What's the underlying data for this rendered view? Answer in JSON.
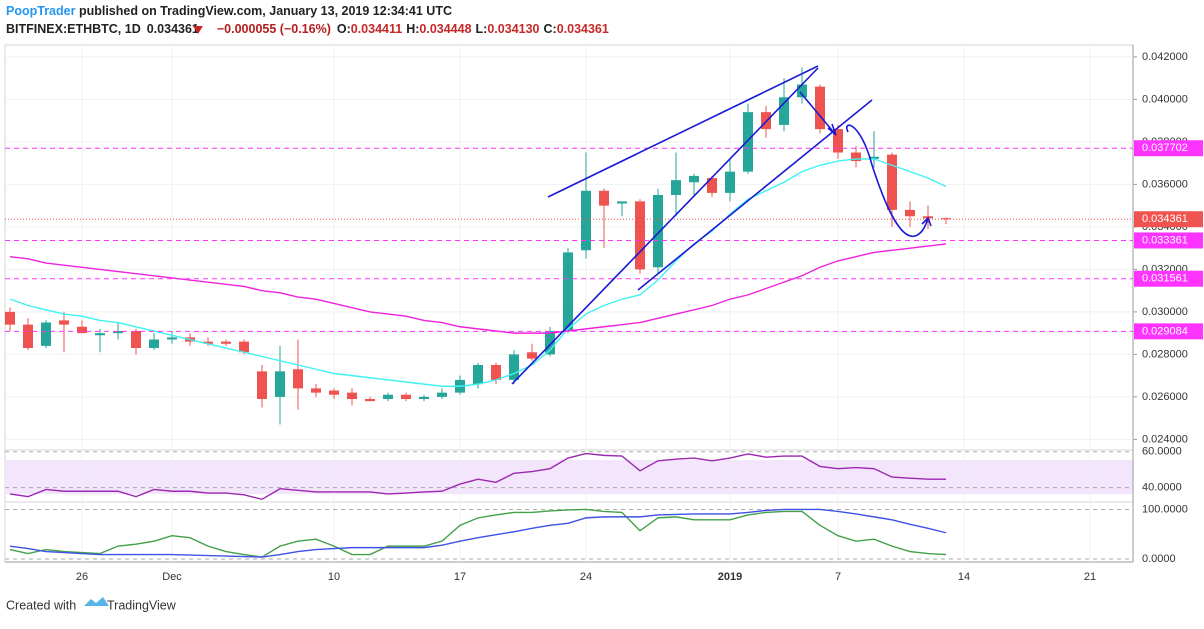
{
  "header": {
    "author": "PoopTrader",
    "published": " published on TradingView.com, January 13, 2019 12:34:41 UTC",
    "symbol": "BITFINEX:ETHBTC, 1D",
    "price": "0.034361",
    "change": "−0.000055 (−0.16%)",
    "ohlc": [
      {
        "label": "O:",
        "value": "0.034411"
      },
      {
        "label": "H:",
        "value": "0.034448"
      },
      {
        "label": "L:",
        "value": "0.034130"
      },
      {
        "label": "C:",
        "value": "0.034361"
      }
    ]
  },
  "footer": {
    "created": "Created with",
    "brand": "TradingView"
  },
  "chart_data": [
    {
      "type": "candlestick",
      "up_color": "#26a69a",
      "down_color": "#ef5350",
      "categories": [
        null,
        null,
        null,
        null,
        "26",
        null,
        null,
        null,
        null,
        "Dec",
        null,
        null,
        null,
        null,
        null,
        null,
        null,
        null,
        "10",
        null,
        null,
        null,
        null,
        null,
        null,
        "17",
        null,
        null,
        null,
        null,
        null,
        null,
        "24",
        null,
        null,
        null,
        null,
        null,
        null,
        null,
        "2019",
        null,
        null,
        null,
        null,
        null,
        "7",
        null,
        null,
        null,
        null,
        null,
        null,
        "14",
        null,
        null,
        null,
        null,
        null,
        null,
        "21",
        null,
        null
      ],
      "open": [
        0.03,
        0.0294,
        0.0284,
        0.0296,
        0.0293,
        0.0289,
        0.029,
        0.0291,
        0.0283,
        0.0287,
        0.0288,
        0.0286,
        0.0286,
        0.0286,
        0.0272,
        0.026,
        0.0273,
        0.0264,
        0.0263,
        0.0262,
        0.0259,
        0.0259,
        0.0261,
        0.0259,
        0.026,
        0.0262,
        0.0266,
        0.0275,
        0.0268,
        0.0281,
        0.028,
        0.0291,
        0.0329,
        0.0357,
        0.0351,
        0.0352,
        0.0321,
        0.0355,
        0.0361,
        0.0363,
        0.0356,
        0.0366,
        0.0394,
        0.0388,
        0.0401,
        0.0406,
        0.0386,
        0.0375,
        0.0372,
        0.0374,
        0.0348,
        0.0345,
        0.034411,
        null,
        null,
        null,
        null,
        null,
        null,
        null,
        null,
        null,
        null
      ],
      "high": [
        0.0302,
        0.0297,
        0.0296,
        0.03,
        0.0296,
        0.0292,
        0.0295,
        0.0292,
        0.029,
        0.0291,
        0.029,
        0.0288,
        0.0287,
        0.0287,
        0.0275,
        0.0284,
        0.0287,
        0.0266,
        0.0264,
        0.0264,
        0.026,
        0.0262,
        0.0262,
        0.0261,
        0.0264,
        0.027,
        0.0276,
        0.0276,
        0.0282,
        0.0285,
        0.0293,
        0.033,
        0.0375,
        0.0358,
        0.0352,
        0.0353,
        0.0358,
        0.0375,
        0.0365,
        0.0364,
        0.0372,
        0.0398,
        0.0397,
        0.041,
        0.0415,
        0.0407,
        0.0388,
        0.0378,
        0.0385,
        0.0375,
        0.0352,
        0.035,
        0.034448,
        null,
        null,
        null,
        null,
        null,
        null,
        null,
        null,
        null,
        null
      ],
      "low": [
        0.0291,
        0.0282,
        0.0283,
        0.0281,
        0.029,
        0.0281,
        0.0287,
        0.028,
        0.0282,
        0.0285,
        0.0284,
        0.0284,
        0.0284,
        0.028,
        0.0255,
        0.0247,
        0.0254,
        0.026,
        0.0259,
        0.0256,
        0.0258,
        0.0258,
        0.0258,
        0.0258,
        0.0259,
        0.0261,
        0.0264,
        0.0266,
        0.0266,
        0.0277,
        0.0279,
        0.029,
        0.0325,
        0.033,
        0.0345,
        0.0318,
        0.0318,
        0.0345,
        0.0355,
        0.0354,
        0.0352,
        0.0365,
        0.0382,
        0.0385,
        0.0398,
        0.0384,
        0.0372,
        0.0368,
        0.0368,
        0.034,
        0.034,
        0.0339,
        0.03413,
        null,
        null,
        null,
        null,
        null,
        null,
        null,
        null,
        null,
        null
      ],
      "close": [
        0.0294,
        0.0283,
        0.0295,
        0.0294,
        0.029,
        0.029,
        0.0291,
        0.0283,
        0.0287,
        0.0288,
        0.0286,
        0.0285,
        0.0285,
        0.0281,
        0.0259,
        0.0272,
        0.0264,
        0.0262,
        0.0261,
        0.0259,
        0.0258,
        0.0261,
        0.0259,
        0.026,
        0.0262,
        0.0268,
        0.0275,
        0.0268,
        0.028,
        0.0278,
        0.0291,
        0.0328,
        0.0357,
        0.035,
        0.0352,
        0.032,
        0.0355,
        0.0362,
        0.0364,
        0.0356,
        0.0366,
        0.0394,
        0.0386,
        0.0401,
        0.0407,
        0.0386,
        0.0375,
        0.0371,
        0.0373,
        0.0348,
        0.0345,
        0.0344,
        0.034361,
        null,
        null,
        null,
        null,
        null,
        null,
        null,
        null,
        null,
        null
      ],
      "series": [
        {
          "color": "#3ff2f2",
          "values": [
            0.0306,
            0.0303,
            0.0301,
            0.0299,
            0.0298,
            0.0296,
            0.0295,
            0.0293,
            0.0291,
            0.0289,
            0.0287,
            0.0285,
            0.0283,
            0.0281,
            0.0279,
            0.0277,
            0.0275,
            0.0273,
            0.0271,
            0.027,
            0.0269,
            0.0268,
            0.0267,
            0.0266,
            0.0265,
            0.0265,
            0.0266,
            0.0268,
            0.0271,
            0.0275,
            0.0282,
            0.0292,
            0.0299,
            0.0303,
            0.0306,
            0.0308,
            0.0315,
            0.0324,
            0.0332,
            0.0338,
            0.0346,
            0.0353,
            0.0357,
            0.0361,
            0.0366,
            0.0369,
            0.0371,
            0.0372,
            0.0372,
            0.0369,
            0.0366,
            0.0363,
            0.0359,
            null,
            null,
            null,
            null,
            null,
            null,
            null,
            null,
            null,
            null
          ]
        },
        {
          "color": "#ee22dd",
          "values": [
            0.0326,
            0.0325,
            0.0323,
            0.0322,
            0.0321,
            0.032,
            0.0319,
            0.0318,
            0.0317,
            0.0316,
            0.0315,
            0.0314,
            0.0313,
            0.0312,
            0.031,
            0.0309,
            0.0307,
            0.0306,
            0.0304,
            0.0302,
            0.03,
            0.0299,
            0.0298,
            0.0296,
            0.0295,
            0.0293,
            0.0292,
            0.0291,
            0.029,
            0.029,
            0.029,
            0.0291,
            0.0292,
            0.0293,
            0.0294,
            0.0295,
            0.0297,
            0.0299,
            0.0301,
            0.0303,
            0.0306,
            0.0308,
            0.0311,
            0.0314,
            0.0317,
            0.0321,
            0.0324,
            0.0326,
            0.0328,
            0.0329,
            0.033,
            0.0331,
            0.0332,
            null,
            null,
            null,
            null,
            null,
            null,
            null,
            null,
            null,
            null
          ]
        }
      ],
      "hlines": [
        {
          "value": 0.037702,
          "label": "0.037702"
        },
        {
          "value": 0.033361,
          "label": "0.033361"
        },
        {
          "value": 0.031561,
          "label": "0.031561"
        },
        {
          "value": 0.029084,
          "label": "0.029084"
        }
      ],
      "hline_color": "#ff33ff",
      "last": {
        "value": 0.034361,
        "label": "0.034361"
      },
      "last_color": "#ef5350",
      "ylim": [
        0.0235,
        0.04256
      ],
      "yticks": [
        {
          "value": 0.042,
          "label": "0.042000"
        },
        {
          "value": 0.04,
          "label": "0.040000"
        },
        {
          "value": 0.038,
          "label": "0.038000"
        },
        {
          "value": 0.036,
          "label": "0.036000"
        },
        {
          "value": 0.034,
          "label": "0.034000"
        },
        {
          "value": 0.032,
          "label": "0.032000"
        },
        {
          "value": 0.03,
          "label": "0.030000"
        },
        {
          "value": 0.028,
          "label": "0.028000"
        },
        {
          "value": 0.026,
          "label": "0.026000"
        },
        {
          "value": 0.024,
          "label": "0.024000"
        }
      ],
      "grid": true
    },
    {
      "type": "line",
      "ylim": [
        32,
        61
      ],
      "yticks": [
        {
          "value": 60,
          "label": "60.0000"
        },
        {
          "value": 40,
          "label": "40.0000"
        }
      ],
      "series": [
        {
          "color": "#9c27b0",
          "values": [
            36.5,
            35,
            39,
            38,
            38,
            38,
            38,
            35,
            39,
            38,
            38,
            37,
            37,
            36,
            33.5,
            39.4,
            38.5,
            37.6,
            37.6,
            37.6,
            37.6,
            36.5,
            37,
            37.6,
            38,
            42,
            44.7,
            43,
            48,
            49,
            50.6,
            56.5,
            59,
            58,
            57.6,
            49.4,
            55,
            55.9,
            56.5,
            55,
            56.5,
            58.8,
            57,
            57.6,
            57.6,
            51.8,
            50.6,
            51.2,
            50.6,
            45.9,
            45.3,
            44.7,
            44.7,
            null,
            null,
            null,
            null,
            null,
            null,
            null,
            null,
            null,
            null
          ]
        }
      ]
    },
    {
      "type": "line",
      "ylim": [
        -6,
        115
      ],
      "yticks": [
        {
          "value": 100,
          "label": "100.0000"
        },
        {
          "value": 0,
          "label": "0.0000"
        }
      ],
      "series": [
        {
          "color": "#43a047",
          "values": [
            19,
            11,
            19,
            15,
            13,
            11,
            26,
            30,
            36,
            47,
            43,
            26,
            15,
            9,
            4,
            26,
            36,
            40,
            26,
            9,
            9,
            26,
            26,
            26,
            36,
            68,
            83,
            89,
            94,
            94,
            97,
            99,
            100,
            96,
            94,
            57,
            83,
            85,
            79,
            79,
            79,
            89,
            94,
            96,
            96,
            68,
            47,
            36,
            40,
            26,
            15,
            11,
            9,
            null,
            null,
            null,
            null,
            null,
            null,
            null,
            null,
            null,
            null
          ]
        },
        {
          "color": "#3f51e6",
          "values": [
            26,
            21,
            15,
            13,
            11,
            9,
            9,
            9,
            9,
            9,
            8,
            7,
            6,
            5,
            4,
            9,
            15,
            19,
            21,
            23,
            23,
            23,
            23,
            23,
            28,
            36,
            43,
            49,
            55,
            62,
            68,
            72,
            83,
            85,
            85,
            85,
            89,
            90,
            91,
            91,
            91,
            94,
            98,
            100,
            100,
            100,
            96,
            91,
            85,
            79,
            70,
            62,
            53,
            null,
            null,
            null,
            null,
            null,
            null,
            null,
            null,
            null,
            null
          ]
        }
      ]
    }
  ]
}
